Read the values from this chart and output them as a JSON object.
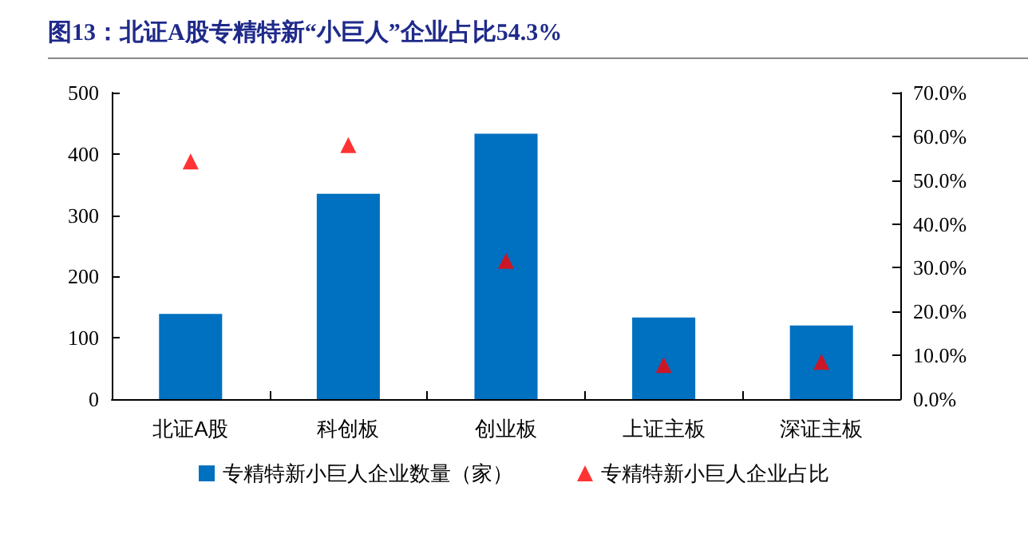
{
  "chart_data": {
    "type": "bar",
    "title": "图13：北证A股专精特新“小巨人”企业占比54.3%",
    "categories": [
      "北证A股",
      "科创板",
      "创业板",
      "上证主板",
      "深证主板"
    ],
    "series": [
      {
        "name": "专精特新小巨人企业数量（家）",
        "color": "#0070c0",
        "values": [
          139,
          335,
          433,
          133,
          120
        ]
      },
      {
        "name": "专精特新小巨人企业占比",
        "type": "scatter",
        "axis": "y2",
        "marker": "triangle",
        "color": "#ff0000",
        "values": [
          54.3,
          58.0,
          31.6,
          7.8,
          8.5
        ]
      }
    ],
    "ylim": [
      0,
      500
    ],
    "yticks": [
      0,
      100,
      200,
      300,
      400,
      500
    ],
    "y2lim": [
      0,
      70
    ],
    "y2ticks": [
      {
        "value": 0,
        "label": "0.0%"
      },
      {
        "value": 10,
        "label": "10.0%"
      },
      {
        "value": 20,
        "label": "20.0%"
      },
      {
        "value": 30,
        "label": "30.0%"
      },
      {
        "value": 40,
        "label": "40.0%"
      },
      {
        "value": 50,
        "label": "50.0%"
      },
      {
        "value": 60,
        "label": "60.0%"
      },
      {
        "value": 70,
        "label": "70.0%"
      }
    ],
    "grid": false,
    "legend": "bottom"
  }
}
